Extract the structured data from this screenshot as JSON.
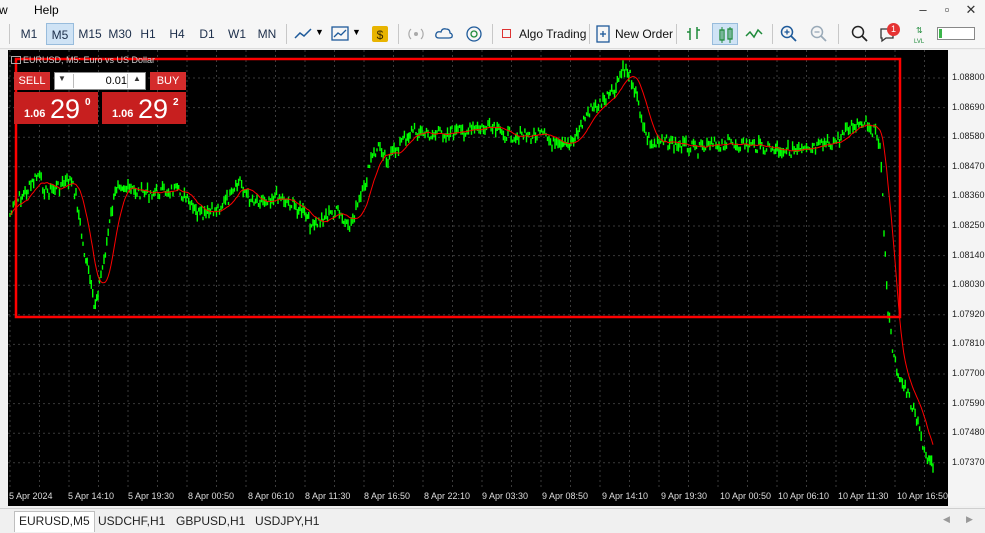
{
  "menu": {
    "partial_left": "w",
    "help": "Help"
  },
  "timeframes": [
    "M1",
    "M5",
    "M15",
    "M30",
    "H1",
    "H4",
    "D1",
    "W1",
    "MN"
  ],
  "active_timeframe": "M5",
  "toolbar": {
    "algo_trading": "Algo Trading",
    "new_order": "New Order",
    "notification_badge": "1"
  },
  "chart": {
    "title": "EURUSD, M5:  Euro vs US Dollar",
    "price_labels": [
      "1.08800",
      "1.08690",
      "1.08580",
      "1.08470",
      "1.08360",
      "1.08250",
      "1.08140",
      "1.08030",
      "1.07920",
      "1.07810",
      "1.07700",
      "1.07590",
      "1.07480",
      "1.07370"
    ],
    "time_labels": [
      "5 Apr 2024",
      "5 Apr 14:10",
      "5 Apr 19:30",
      "8 Apr 00:50",
      "8 Apr 06:10",
      "8 Apr 11:30",
      "8 Apr 16:50",
      "8 Apr 22:10",
      "9 Apr 03:30",
      "9 Apr 08:50",
      "9 Apr 14:10",
      "9 Apr 19:30",
      "10 Apr 00:50",
      "10 Apr 06:10",
      "10 Apr 11:30",
      "10 Apr 16:50"
    ],
    "highlight_color": "#ff0000",
    "candle_color": "#00ff00",
    "ma_color": "#ff0000"
  },
  "trade": {
    "sell_label": "SELL",
    "buy_label": "BUY",
    "volume": "0.01",
    "sell_price_small": "1.06",
    "sell_price_big": "29",
    "sell_price_sup": "0",
    "buy_price_small": "1.06",
    "buy_price_big": "29",
    "buy_price_sup": "2"
  },
  "tabs": [
    "EURUSD,M5",
    "USDCHF,H1",
    "GBPUSD,H1",
    "USDJPY,H1"
  ],
  "active_tab": "EURUSD,M5"
}
